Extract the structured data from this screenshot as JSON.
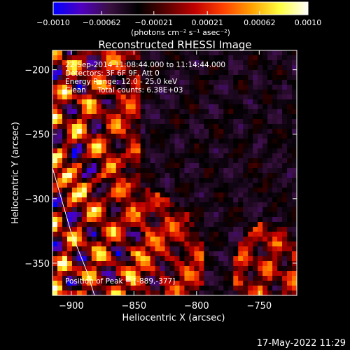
{
  "chart_data": {
    "type": "heatmap",
    "title": "Reconstructed RHESSI Image",
    "xlabel": "Heliocentric X (arcsec)",
    "ylabel": "Heliocentric Y (arcsec)",
    "xlim": [
      -915,
      -720
    ],
    "ylim": [
      -375,
      -185
    ],
    "x_ticks": [
      -900,
      -850,
      -800,
      -750
    ],
    "x_tick_labels": [
      "−900",
      "−850",
      "−800",
      "−750"
    ],
    "y_ticks": [
      -350,
      -300,
      -250,
      -200
    ],
    "y_tick_labels": [
      "−350",
      "−300",
      "−250",
      "−200"
    ],
    "colorbar": {
      "range": [
        -0.001,
        0.001
      ],
      "ticks": [
        -0.001,
        -0.00062,
        -0.00021,
        0.00021,
        0.00062,
        0.001
      ],
      "tick_labels": [
        "−0.0010",
        "−0.00062",
        "−0.00021",
        "0.00021",
        "0.00062",
        "0.0010"
      ],
      "units_label": "(photons cm⁻² s⁻¹ asec⁻²)",
      "colormap": [
        "#0000ff",
        "#5000c0",
        "#3a1040",
        "#000000",
        "#5a0000",
        "#c00000",
        "#ff4000",
        "#ffa000",
        "#ffff40",
        "#ffffff"
      ]
    },
    "annotations": {
      "lines": [
        "22-Sep-2014 11:08:44.000 to 11:14:44.000",
        "Detectors: 3F 6F 9F, Att 0",
        "Energy Range: 12.0 - 25.0 keV",
        "Clean     Total counts: 6.38E+03"
      ],
      "peak": "Position of Peak = [-889,-377]"
    },
    "grid": false,
    "legend": "none",
    "colors": {
      "background": "#000000",
      "text": "#ffffff"
    }
  },
  "footer": {
    "timestamp": "17-May-2022 11:29"
  }
}
